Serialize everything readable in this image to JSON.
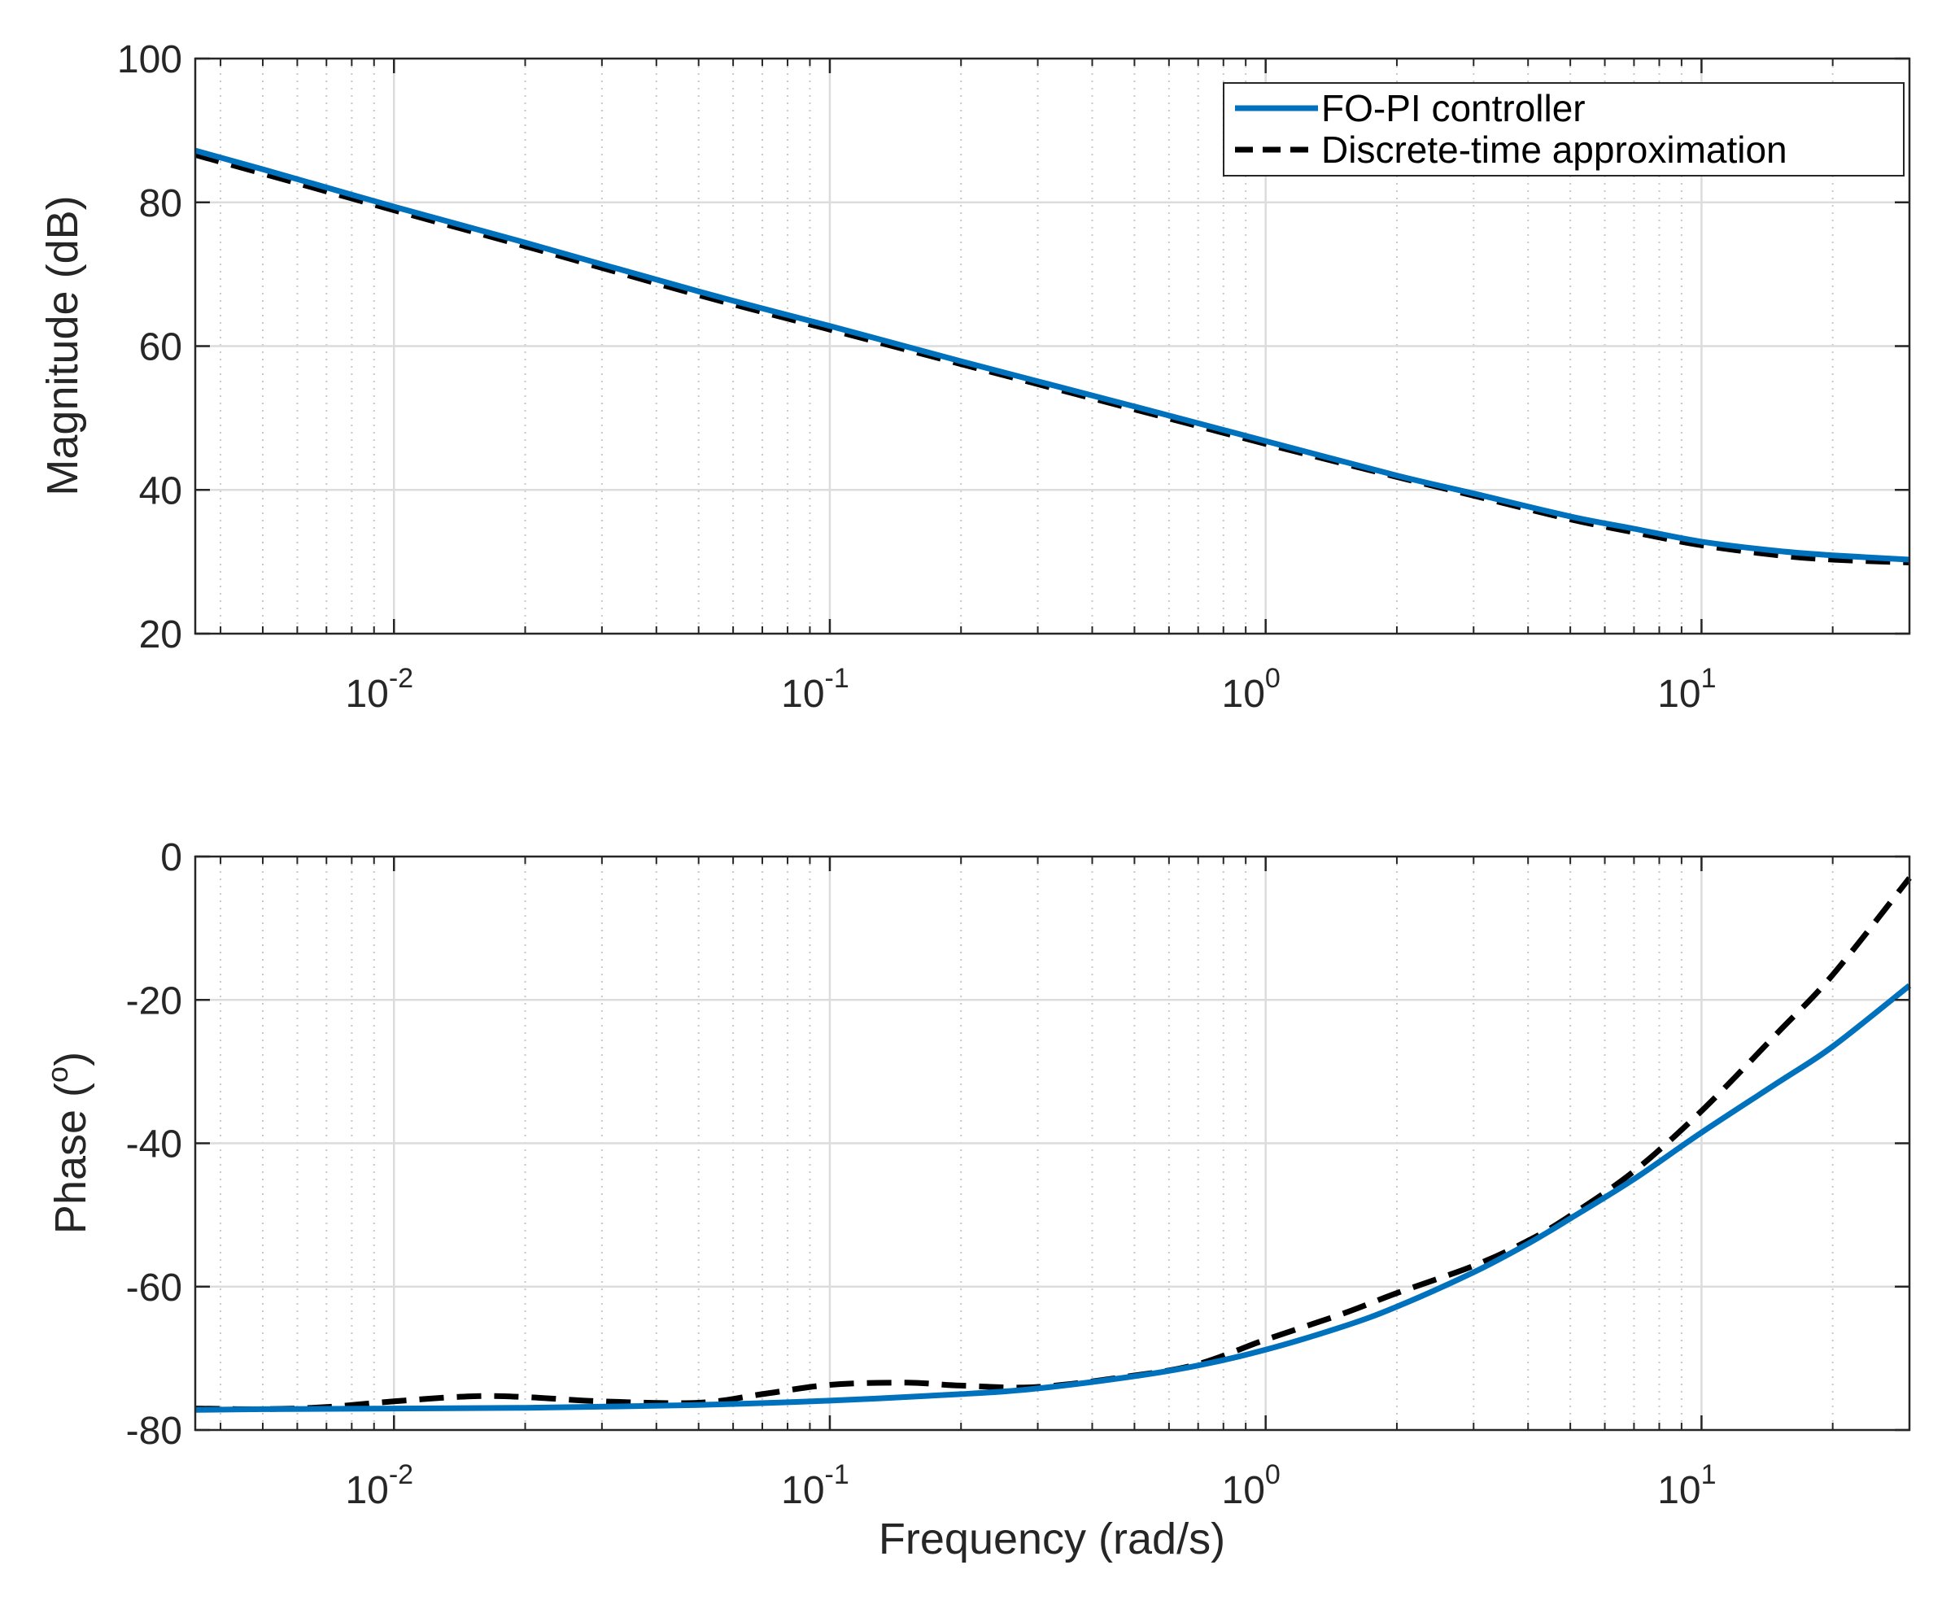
{
  "colors": {
    "fo_pi": "#0072BD",
    "discrete": "#000000",
    "grid_major": "#dcdcdc",
    "grid_minor": "#c8c8c8",
    "axis": "#262626"
  },
  "chart_data": [
    {
      "id": "magnitude",
      "type": "line",
      "xscale": "log",
      "xlim": [
        0.0035,
        30
      ],
      "ylim": [
        20,
        100
      ],
      "yticks": [
        20,
        40,
        60,
        80,
        100
      ],
      "ytick_labels": [
        "20",
        "40",
        "60",
        "80",
        "100"
      ],
      "xticks": [
        0.01,
        0.1,
        1,
        10
      ],
      "xtick_labels": [
        {
          "base": "10",
          "exp": "-2"
        },
        {
          "base": "10",
          "exp": "-1"
        },
        {
          "base": "10",
          "exp": "0"
        },
        {
          "base": "10",
          "exp": "1"
        }
      ],
      "xlabel": "",
      "ylabel": "Magnitude (dB)",
      "grid": true,
      "legend": {
        "position": "top-right",
        "entries": [
          "FO-PI controller",
          "Discrete-time approximation"
        ]
      },
      "series": [
        {
          "name": "FO-PI controller",
          "style": "solid",
          "x": [
            0.0035,
            0.005,
            0.01,
            0.02,
            0.05,
            0.1,
            0.2,
            0.5,
            1,
            2,
            3,
            5,
            7,
            10,
            15,
            20,
            30
          ],
          "y": [
            87.2,
            84.6,
            79.4,
            74.4,
            67.6,
            62.8,
            57.9,
            51.6,
            46.8,
            42.0,
            39.5,
            36.3,
            34.6,
            32.8,
            31.5,
            30.9,
            30.3
          ]
        },
        {
          "name": "Discrete-time approximation",
          "style": "dashed",
          "x": [
            0.0035,
            0.005,
            0.01,
            0.02,
            0.05,
            0.1,
            0.2,
            0.5,
            1,
            2,
            3,
            5,
            7,
            10,
            15,
            20,
            30
          ],
          "y": [
            86.6,
            84.0,
            78.9,
            73.9,
            67.1,
            62.3,
            57.5,
            51.2,
            46.4,
            41.8,
            39.2,
            35.9,
            34.1,
            32.3,
            30.9,
            30.3,
            29.9
          ]
        }
      ]
    },
    {
      "id": "phase",
      "type": "line",
      "xscale": "log",
      "xlim": [
        0.0035,
        30
      ],
      "ylim": [
        -80,
        0
      ],
      "yticks": [
        -80,
        -60,
        -40,
        -20,
        0
      ],
      "ytick_labels": [
        "-80",
        "-60",
        "-40",
        "-20",
        "0"
      ],
      "xticks": [
        0.01,
        0.1,
        1,
        10
      ],
      "xtick_labels": [
        {
          "base": "10",
          "exp": "-2"
        },
        {
          "base": "10",
          "exp": "-1"
        },
        {
          "base": "10",
          "exp": "0"
        },
        {
          "base": "10",
          "exp": "1"
        }
      ],
      "xlabel": "Frequency (rad/s)",
      "ylabel": {
        "base": "Phase (",
        "exp": "o",
        "tail": ")"
      },
      "grid": true,
      "series": [
        {
          "name": "FO-PI controller",
          "style": "solid",
          "x": [
            0.0035,
            0.005,
            0.01,
            0.02,
            0.05,
            0.1,
            0.2,
            0.3,
            0.5,
            0.7,
            1,
            1.5,
            2,
            3,
            4,
            5,
            7,
            10,
            15,
            20,
            30
          ],
          "y": [
            -77.2,
            -77.1,
            -77.0,
            -76.9,
            -76.5,
            -75.9,
            -75.0,
            -74.2,
            -72.5,
            -71.0,
            -68.8,
            -65.6,
            -62.8,
            -58.0,
            -54.0,
            -50.5,
            -45.0,
            -38.5,
            -31.5,
            -26.5,
            -18.0
          ]
        },
        {
          "name": "Discrete-time approximation",
          "style": "dashed",
          "x": [
            0.0035,
            0.005,
            0.007,
            0.01,
            0.015,
            0.02,
            0.03,
            0.05,
            0.07,
            0.1,
            0.15,
            0.2,
            0.3,
            0.5,
            0.7,
            1,
            1.5,
            2,
            3,
            4,
            5,
            7,
            10,
            15,
            20,
            30
          ],
          "y": [
            -77.0,
            -77.1,
            -76.8,
            -76.0,
            -75.3,
            -75.4,
            -76.0,
            -76.2,
            -75.0,
            -73.7,
            -73.4,
            -73.8,
            -74.0,
            -72.4,
            -70.8,
            -67.4,
            -63.8,
            -60.9,
            -57.1,
            -53.6,
            -50.1,
            -43.9,
            -35.5,
            -24.5,
            -16.5,
            -3.0
          ]
        }
      ]
    }
  ]
}
